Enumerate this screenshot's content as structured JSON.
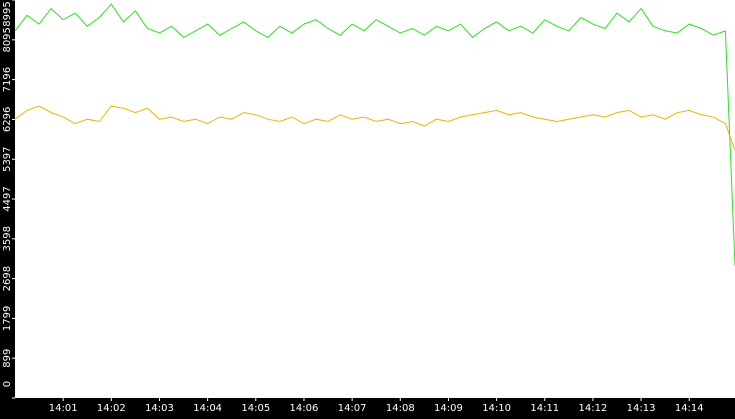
{
  "chart_data": {
    "type": "line",
    "x": [
      0,
      0.25,
      0.5,
      0.75,
      1,
      1.25,
      1.5,
      1.75,
      2,
      2.25,
      2.5,
      2.75,
      3,
      3.25,
      3.5,
      3.75,
      4,
      4.25,
      4.5,
      4.75,
      5,
      5.25,
      5.5,
      5.75,
      6,
      6.25,
      6.5,
      6.75,
      7,
      7.25,
      7.5,
      7.75,
      8,
      8.25,
      8.5,
      8.75,
      9,
      9.25,
      9.5,
      9.75,
      10,
      10.25,
      10.5,
      10.75,
      11,
      11.25,
      11.5,
      11.75,
      12,
      12.25,
      12.5,
      12.75,
      13,
      13.25,
      13.5,
      13.75,
      14,
      14.25,
      14.5,
      14.75,
      14.95
    ],
    "series": [
      {
        "color": "#2ee01e",
        "values": [
          8300,
          8650,
          8450,
          8800,
          8550,
          8700,
          8400,
          8600,
          8900,
          8500,
          8750,
          8350,
          8250,
          8400,
          8150,
          8300,
          8450,
          8200,
          8350,
          8500,
          8300,
          8150,
          8400,
          8250,
          8450,
          8550,
          8350,
          8200,
          8450,
          8300,
          8550,
          8400,
          8250,
          8350,
          8200,
          8400,
          8300,
          8450,
          8150,
          8350,
          8500,
          8300,
          8400,
          8250,
          8550,
          8400,
          8300,
          8600,
          8450,
          8350,
          8700,
          8500,
          8800,
          8400,
          8300,
          8250,
          8450,
          8350,
          8200,
          8300,
          3000
        ]
      },
      {
        "color": "#f0b400",
        "values": [
          6300,
          6500,
          6600,
          6450,
          6350,
          6200,
          6300,
          6250,
          6600,
          6550,
          6450,
          6550,
          6300,
          6350,
          6250,
          6300,
          6200,
          6350,
          6300,
          6450,
          6400,
          6300,
          6250,
          6350,
          6200,
          6300,
          6250,
          6400,
          6300,
          6350,
          6250,
          6300,
          6200,
          6250,
          6150,
          6300,
          6250,
          6350,
          6400,
          6450,
          6500,
          6400,
          6450,
          6350,
          6300,
          6250,
          6300,
          6350,
          6400,
          6350,
          6450,
          6500,
          6350,
          6400,
          6300,
          6450,
          6500,
          6400,
          6350,
          6200,
          5600
        ]
      }
    ],
    "xlim": [
      0,
      14.95
    ],
    "xticks": [
      {
        "value": 1,
        "label": "14:01"
      },
      {
        "value": 2,
        "label": "14:02"
      },
      {
        "value": 3,
        "label": "14:03"
      },
      {
        "value": 4,
        "label": "14:04"
      },
      {
        "value": 5,
        "label": "14:05"
      },
      {
        "value": 6,
        "label": "14:06"
      },
      {
        "value": 7,
        "label": "14:07"
      },
      {
        "value": 8,
        "label": "14:08"
      },
      {
        "value": 9,
        "label": "14:09"
      },
      {
        "value": 10,
        "label": "14:10"
      },
      {
        "value": 11,
        "label": "14:11"
      },
      {
        "value": 12,
        "label": "14:12"
      },
      {
        "value": 13,
        "label": "14:13"
      },
      {
        "value": 14,
        "label": "14:14"
      }
    ],
    "ylim": [
      0,
      8995
    ],
    "yticks": [
      0,
      899,
      1799,
      2698,
      3598,
      4497,
      5397,
      6296,
      7196,
      8095,
      8995
    ]
  }
}
